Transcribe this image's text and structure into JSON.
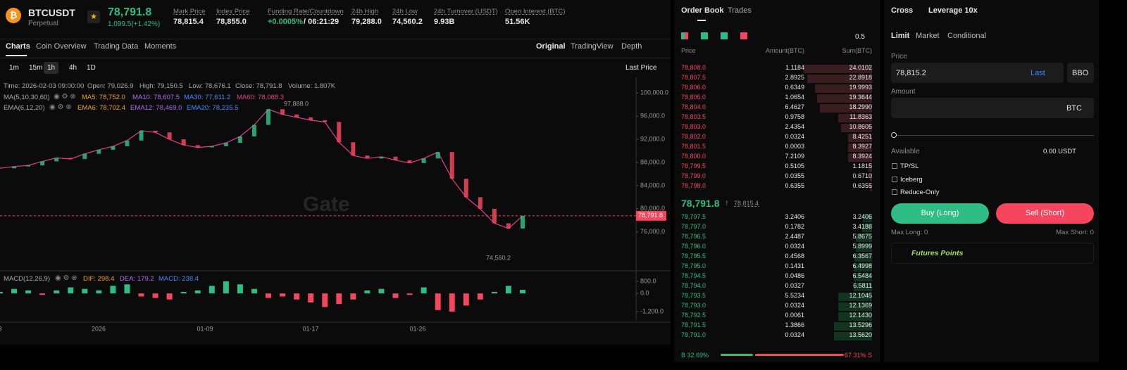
{
  "header": {
    "symbol": "BTCUSDT",
    "contract": "Perpetual",
    "price": "78,791.8",
    "change": "1,099.5(+1.42%)",
    "stats": [
      {
        "label": "Mark Price",
        "value": "78,815.4"
      },
      {
        "label": "Index Price",
        "value": "78,855.0"
      },
      {
        "label": "Funding Rate/Countdown",
        "value": "+0.0005%",
        "extra": "/ 06:21:29"
      },
      {
        "label": "24h High",
        "value": "79,288.0"
      },
      {
        "label": "24h Low",
        "value": "74,560.2"
      },
      {
        "label": "24h Turnover (USDT)",
        "value": "9.93B"
      },
      {
        "label": "Open Interest (BTC)",
        "value": "51.56K"
      }
    ]
  },
  "tabs": [
    "Charts",
    "Coin Overview",
    "Trading Data",
    "Moments"
  ],
  "views": [
    "Original",
    "TradingView",
    "Depth"
  ],
  "intervals": [
    "1m",
    "15m",
    "1h",
    "4h",
    "1D"
  ],
  "price_mode": "Last Price",
  "info": [
    "Time: 2026-02-03 09:00:00",
    "Open: 79,026.9",
    "High: 79,150.5",
    "Low: 78,676.1",
    "Close: 78,791.8",
    "Volume: 1.807K"
  ],
  "ma": {
    "name": "MA(5,10,30,60)",
    "items": [
      {
        "text": "MA5: 78,752.0",
        "color": "#f0a020"
      },
      {
        "text": "MA10: 78,607.5",
        "color": "#b06cf0"
      },
      {
        "text": "MA30: 77,611.2",
        "color": "#3f8cff"
      },
      {
        "text": "MA60: 78,088.3",
        "color": "#e0408a"
      }
    ]
  },
  "ema": {
    "name": "EMA(6,12,20)",
    "items": [
      {
        "text": "EMA6: 78,702.4",
        "color": "#f0a020"
      },
      {
        "text": "EMA12: 78,469.0",
        "color": "#b06cf0"
      },
      {
        "text": "EMA20: 78,235.5",
        "color": "#3f8cff"
      }
    ]
  },
  "watermark": "Gate",
  "kline": {
    "ylim": [
      69900,
      102700
    ],
    "yticks": [
      {
        "value": 100000,
        "label": "100,000.0"
      },
      {
        "value": 96000,
        "label": "96,000.0"
      },
      {
        "value": 92000,
        "label": "92,000.0"
      },
      {
        "value": 88000,
        "label": "88,000.0"
      },
      {
        "value": 84000,
        "label": "84,000.0"
      },
      {
        "value": 80000,
        "label": "80,000.0"
      },
      {
        "value": 76000,
        "label": "76,000.0"
      }
    ],
    "closes": [
      87000,
      87300,
      87500,
      88200,
      88800,
      88600,
      89500,
      90200,
      90800,
      91800,
      93500,
      93200,
      92000,
      91000,
      90600,
      90800,
      91400,
      92500,
      94500,
      97200,
      96300,
      95800,
      95300,
      95000,
      91500,
      89200,
      88700,
      89000,
      88400,
      87900,
      88700,
      89800,
      85200,
      82000,
      80000,
      77500,
      76600,
      78791.8
    ],
    "last": {
      "value": 78791.8,
      "label": "78,791.8"
    },
    "high_note": "97,888.0",
    "low_note": "74,560.2"
  },
  "macd": {
    "name": "MACD(12,26,9)",
    "items": [
      {
        "text": "DIF: 298.4",
        "color": "#f0a020"
      },
      {
        "text": "DEA: 179.2",
        "color": "#b06cf0"
      },
      {
        "text": "MACD: 238.4",
        "color": "#3f8cff"
      }
    ],
    "ylim": [
      -1760,
      1170
    ],
    "yticks": [
      {
        "value": 800,
        "label": "800.0"
      },
      {
        "value": 0,
        "label": "0.0"
      },
      {
        "value": -1200,
        "label": "-1,200.0"
      }
    ],
    "hist": [
      100,
      300,
      200,
      -100,
      200,
      400,
      300,
      200,
      500,
      600,
      -200,
      -300,
      -400,
      100,
      200,
      500,
      800,
      600,
      300,
      -300,
      -200,
      -400,
      -600,
      -900,
      -700,
      -400,
      200,
      300,
      -300,
      -100,
      400,
      -1100,
      -1200,
      -800,
      -400,
      100,
      500,
      238.4
    ]
  },
  "xaxis": [
    "3",
    "2026",
    "01-09",
    "01-17",
    "01-26"
  ],
  "orderbook": {
    "tabs": [
      "Order Book",
      "Trades"
    ],
    "step": "0.5",
    "columns": [
      "Price",
      "Amount(BTC)",
      "Sum(BTC)"
    ],
    "asks": [
      [
        "78,808.0",
        "1.1184",
        "24.0102"
      ],
      [
        "78,807.5",
        "2.8925",
        "22.8918"
      ],
      [
        "78,806.0",
        "0.6349",
        "19.9993"
      ],
      [
        "78,805.0",
        "1.0654",
        "19.3644"
      ],
      [
        "78,804.0",
        "6.4627",
        "18.2990"
      ],
      [
        "78,803.5",
        "0.9758",
        "11.8363"
      ],
      [
        "78,803.0",
        "2.4354",
        "10.8605"
      ],
      [
        "78,802.0",
        "0.0324",
        "8.4251"
      ],
      [
        "78,801.5",
        "0.0003",
        "8.3927"
      ],
      [
        "78,800.0",
        "7.2109",
        "8.3924"
      ],
      [
        "78,799.5",
        "0.5105",
        "1.1815"
      ],
      [
        "78,799.0",
        "0.0355",
        "0.6710"
      ],
      [
        "78,798.0",
        "0.6355",
        "0.6355"
      ]
    ],
    "mid": "78,791.8",
    "mark": "78,815.4",
    "bids": [
      [
        "78,797.5",
        "3.2406",
        "3.2406"
      ],
      [
        "78,797.0",
        "0.1782",
        "3.4188"
      ],
      [
        "78,796.5",
        "2.4487",
        "5.8675"
      ],
      [
        "78,796.0",
        "0.0324",
        "5.8999"
      ],
      [
        "78,795.5",
        "0.4568",
        "6.3567"
      ],
      [
        "78,795.0",
        "0.1431",
        "6.4998"
      ],
      [
        "78,794.5",
        "0.0486",
        "6.5484"
      ],
      [
        "78,794.0",
        "0.0327",
        "6.5811"
      ],
      [
        "78,793.5",
        "5.5234",
        "12.1045"
      ],
      [
        "78,793.0",
        "0.0324",
        "12.1369"
      ],
      [
        "78,792.5",
        "0.0061",
        "12.1430"
      ],
      [
        "78,791.5",
        "1.3866",
        "13.5296"
      ],
      [
        "78,791.0",
        "0.0324",
        "13.5620"
      ]
    ],
    "buy_ratio": "B 32.69%",
    "sell_ratio": "67.31% S"
  },
  "trade": {
    "margin": "Cross",
    "leverage": "Leverage 10x",
    "order_types": [
      "Limit",
      "Market",
      "Conditional"
    ],
    "price_label": "Price",
    "price": "78,815.2",
    "last": "Last",
    "bbo": "BBO",
    "amount_label": "Amount",
    "unit": "BTC",
    "available": "Available",
    "balance": "0.00 USDT",
    "options": [
      "TP/SL",
      "Iceberg",
      "Reduce-Only"
    ],
    "buy": "Buy (Long)",
    "sell": "Sell (Short)",
    "max_long": "Max Long: 0",
    "max_short": "Max Short: 0",
    "points": "Futures Points"
  }
}
